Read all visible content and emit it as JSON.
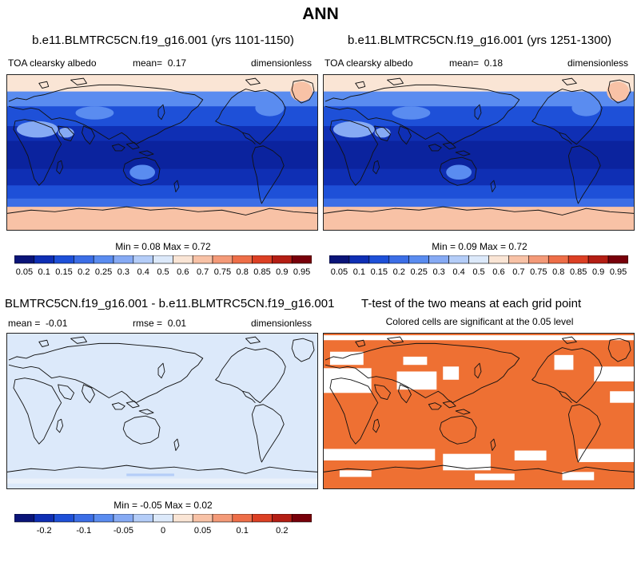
{
  "header": {
    "title": "ANN"
  },
  "panels": {
    "p1": {
      "title": "b.e11.BLMTRC5CN.f19_g16.001 (yrs 1101-1150)",
      "left_label": "TOA clearsky albedo",
      "mean_label": "mean=",
      "mean_value": "0.17",
      "units": "dimensionless",
      "minmax": "Min =   0.08 Max =   0.72"
    },
    "p2": {
      "title": "b.e11.BLMTRC5CN.f19_g16.001 (yrs 1251-1300)",
      "left_label": "TOA clearsky albedo",
      "mean_label": "mean=",
      "mean_value": "0.18",
      "units": "dimensionless",
      "minmax": "Min =   0.09 Max =   0.72"
    },
    "p3": {
      "title": "BLMTRC5CN.f19_g16.001 - b.e11.BLMTRC5CN.f19_g16.001",
      "mean_label": "mean =",
      "mean_value": "-0.01",
      "rmse_label": "rmse =",
      "rmse_value": "0.01",
      "units": "dimensionless",
      "minmax": "Min =  -0.05 Max =   0.02"
    },
    "p4": {
      "title": "T-test of the two means at each grid point",
      "subtitle": "Colored cells are significant at the 0.05 level"
    }
  },
  "colorbar_abs": {
    "labels": [
      "0.05",
      "0.1",
      "0.15",
      "0.2",
      "0.25",
      "0.3",
      "0.4",
      "0.5",
      "0.6",
      "0.7",
      "0.75",
      "0.8",
      "0.85",
      "0.9",
      "0.95"
    ],
    "colors": [
      "#0a1478",
      "#0f2fb4",
      "#1e50d8",
      "#3c6ee6",
      "#5a8cf0",
      "#86aaf4",
      "#b4cdf8",
      "#dce9fa",
      "#fae5d5",
      "#f8c2a6",
      "#f49a78",
      "#ee6e48",
      "#dc4024",
      "#b41e14",
      "#78000a"
    ]
  },
  "colorbar_diff": {
    "labels": [
      "-0.2",
      "-0.1",
      "-0.05",
      "0",
      "0.05",
      "0.1",
      "0.2"
    ],
    "colors": [
      "#0a1478",
      "#0f2fb4",
      "#1e50d8",
      "#3c6ee6",
      "#5a8cf0",
      "#86aaf4",
      "#b4cdf8",
      "#dce9fa",
      "#fae5d5",
      "#f8c2a6",
      "#f49a78",
      "#ee6e48",
      "#dc4024",
      "#b41e14",
      "#78000a"
    ]
  },
  "chart_data": [
    {
      "type": "heatmap",
      "title": "b.e11.BLMTRC5CN.f19_g16.001 (yrs 1101-1150)",
      "variable": "TOA clearsky albedo",
      "mean": 0.17,
      "min": 0.08,
      "max": 0.72,
      "units": "dimensionless"
    },
    {
      "type": "heatmap",
      "title": "b.e11.BLMTRC5CN.f19_g16.001 (yrs 1251-1300)",
      "variable": "TOA clearsky albedo",
      "mean": 0.18,
      "min": 0.09,
      "max": 0.72,
      "units": "dimensionless"
    },
    {
      "type": "heatmap",
      "title": "BLMTRC5CN.f19_g16.001 - b.e11.BLMTRC5CN.f19_g16.001",
      "mean": -0.01,
      "rmse": 0.01,
      "min": -0.05,
      "max": 0.02,
      "units": "dimensionless"
    },
    {
      "type": "heatmap",
      "title": "T-test of the two means at each grid point",
      "note": "Colored cells are significant at the 0.05 level"
    }
  ]
}
